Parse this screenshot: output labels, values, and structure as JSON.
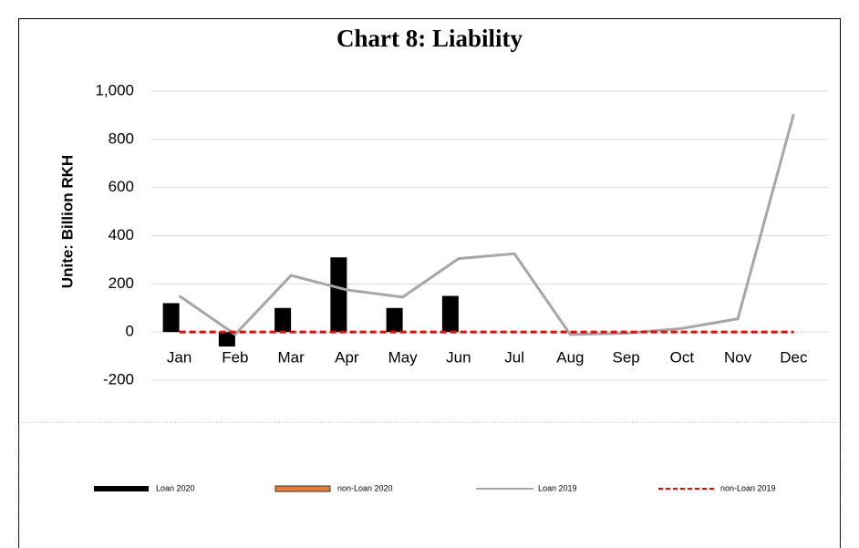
{
  "chart_data": {
    "type": "bar-line",
    "title": "Chart 8: Liability",
    "y_label": "Unite: Billion RKH",
    "categories": [
      "Jan",
      "Feb",
      "Mar",
      "Apr",
      "May",
      "Jun",
      "Jul",
      "Aug",
      "Sep",
      "Oct",
      "Nov",
      "Dec"
    ],
    "series": [
      {
        "name": "Loan 2020",
        "kind": "bar",
        "color": "#000000",
        "values": [
          120,
          -60,
          100,
          310,
          100,
          150,
          null,
          null,
          null,
          null,
          null,
          null
        ]
      },
      {
        "name": "non-Loan 2020",
        "kind": "bar",
        "color": "#ed7d31",
        "values": [
          0,
          0,
          0,
          0,
          0,
          0,
          null,
          null,
          null,
          null,
          null,
          null
        ]
      },
      {
        "name": "Loan 2019",
        "kind": "line",
        "color": "#a6a6a6",
        "values": [
          150,
          -10,
          235,
          175,
          145,
          305,
          325,
          -10,
          -5,
          15,
          55,
          905
        ]
      },
      {
        "name": "non-Loan 2019",
        "kind": "dashed-line",
        "color": "#ff0000",
        "values": [
          0,
          0,
          0,
          0,
          0,
          0,
          0,
          0,
          0,
          0,
          0,
          0
        ]
      }
    ],
    "ylim": [
      -200,
      1000
    ],
    "yticks": [
      -200,
      0,
      200,
      400,
      600,
      {
        "value": 800,
        "label": "800"
      },
      {
        "value": 1000,
        "label": "1,000"
      }
    ],
    "grid": true,
    "legend": "bottom"
  }
}
